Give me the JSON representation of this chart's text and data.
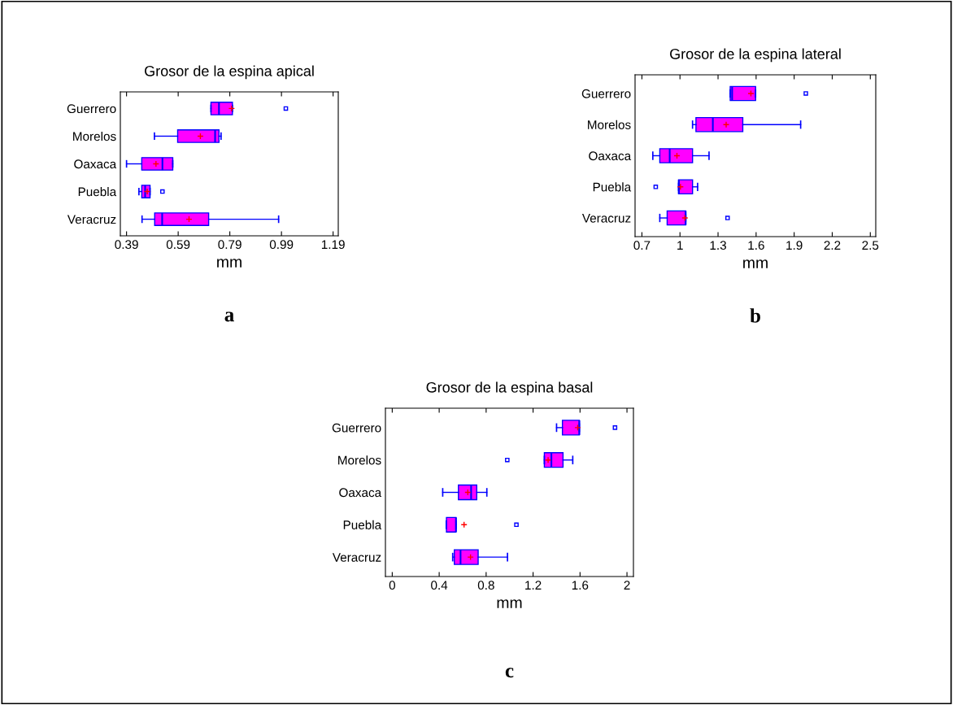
{
  "chart_data": [
    {
      "type": "box",
      "title": "Grosor de la espina apical",
      "xlabel": "mm",
      "orientation": "horizontal",
      "annotations": [
        "a"
      ],
      "categories": [
        "Guerrero",
        "Morelos",
        "Oaxaca",
        "Puebla",
        "Veracruz"
      ],
      "xlim": [
        0.366,
        1.21
      ],
      "xticks": [
        0.39,
        0.59,
        0.79,
        0.99,
        1.19
      ],
      "series": [
        {
          "color": "#ff00ff",
          "boxes": [
            {
              "low": 0.717,
              "q1": 0.717,
              "median": 0.748,
              "q3": 0.8,
              "high": 0.8,
              "mean": 0.797,
              "outliers": [
                1.007
              ]
            },
            {
              "low": 0.498,
              "q1": 0.588,
              "median": 0.733,
              "q3": 0.748,
              "high": 0.756,
              "mean": 0.676
            },
            {
              "low": 0.39,
              "q1": 0.449,
              "median": 0.529,
              "q3": 0.569,
              "high": 0.569,
              "mean": 0.504
            },
            {
              "low": 0.438,
              "q1": 0.449,
              "median": 0.462,
              "q3": 0.481,
              "high": 0.481,
              "mean": 0.47,
              "outliers": [
                0.529
              ]
            },
            {
              "low": 0.45,
              "q1": 0.499,
              "median": 0.528,
              "q3": 0.708,
              "high": 0.979,
              "mean": 0.632
            }
          ]
        }
      ]
    },
    {
      "type": "box",
      "title": "Grosor de la espina lateral",
      "xlabel": "mm",
      "orientation": "horizontal",
      "annotations": [
        "b"
      ],
      "categories": [
        "Guerrero",
        "Morelos",
        "Oaxaca",
        "Puebla",
        "Veracruz"
      ],
      "xlim": [
        0.646,
        2.543
      ],
      "xticks": [
        0.7,
        1,
        1.3,
        1.6,
        1.9,
        2.2,
        2.5
      ],
      "series": [
        {
          "color": "#ff00ff",
          "boxes": [
            {
              "low": 1.396,
              "q1": 1.396,
              "median": 1.411,
              "q3": 1.596,
              "high": 1.596,
              "mean": 1.559,
              "outliers": [
                1.992
              ]
            },
            {
              "low": 1.099,
              "q1": 1.126,
              "median": 1.259,
              "q3": 1.495,
              "high": 1.951,
              "mean": 1.364
            },
            {
              "low": 0.786,
              "q1": 0.841,
              "median": 0.919,
              "q3": 1.099,
              "high": 1.229,
              "mean": 0.976
            },
            {
              "low": 0.989,
              "q1": 0.989,
              "median": 0.991,
              "q3": 1.099,
              "high": 1.139,
              "mean": 1.004,
              "outliers": [
                0.809
              ]
            },
            {
              "low": 0.841,
              "q1": 0.899,
              "median": 1.045,
              "q3": 1.045,
              "high": 1.045,
              "mean": 1.039,
              "outliers": [
                1.375
              ]
            }
          ]
        }
      ]
    },
    {
      "type": "box",
      "title": "Grosor de la espina basal",
      "xlabel": "mm",
      "orientation": "horizontal",
      "annotations": [
        "c"
      ],
      "categories": [
        "Guerrero",
        "Morelos",
        "Oaxaca",
        "Puebla",
        "Veracruz"
      ],
      "xlim": [
        -0.058,
        2.055
      ],
      "xticks": [
        0,
        0.4,
        0.8,
        1.2,
        1.6,
        2
      ],
      "series": [
        {
          "color": "#ff00ff",
          "boxes": [
            {
              "low": 1.4,
              "q1": 1.45,
              "median": 1.594,
              "q3": 1.594,
              "high": 1.594,
              "mean": 1.58,
              "outliers": [
                1.898
              ]
            },
            {
              "low": 1.296,
              "q1": 1.296,
              "median": 1.356,
              "q3": 1.455,
              "high": 1.538,
              "mean": 1.328,
              "outliers": [
                0.98
              ]
            },
            {
              "low": 0.43,
              "q1": 0.564,
              "median": 0.672,
              "q3": 0.72,
              "high": 0.806,
              "mean": 0.644
            },
            {
              "low": 0.46,
              "q1": 0.462,
              "median": 0.543,
              "q3": 0.543,
              "high": 0.543,
              "mean": 0.612,
              "outliers": [
                1.058
              ]
            },
            {
              "low": 0.515,
              "q1": 0.529,
              "median": 0.582,
              "q3": 0.732,
              "high": 0.982,
              "mean": 0.667
            }
          ]
        }
      ]
    }
  ]
}
